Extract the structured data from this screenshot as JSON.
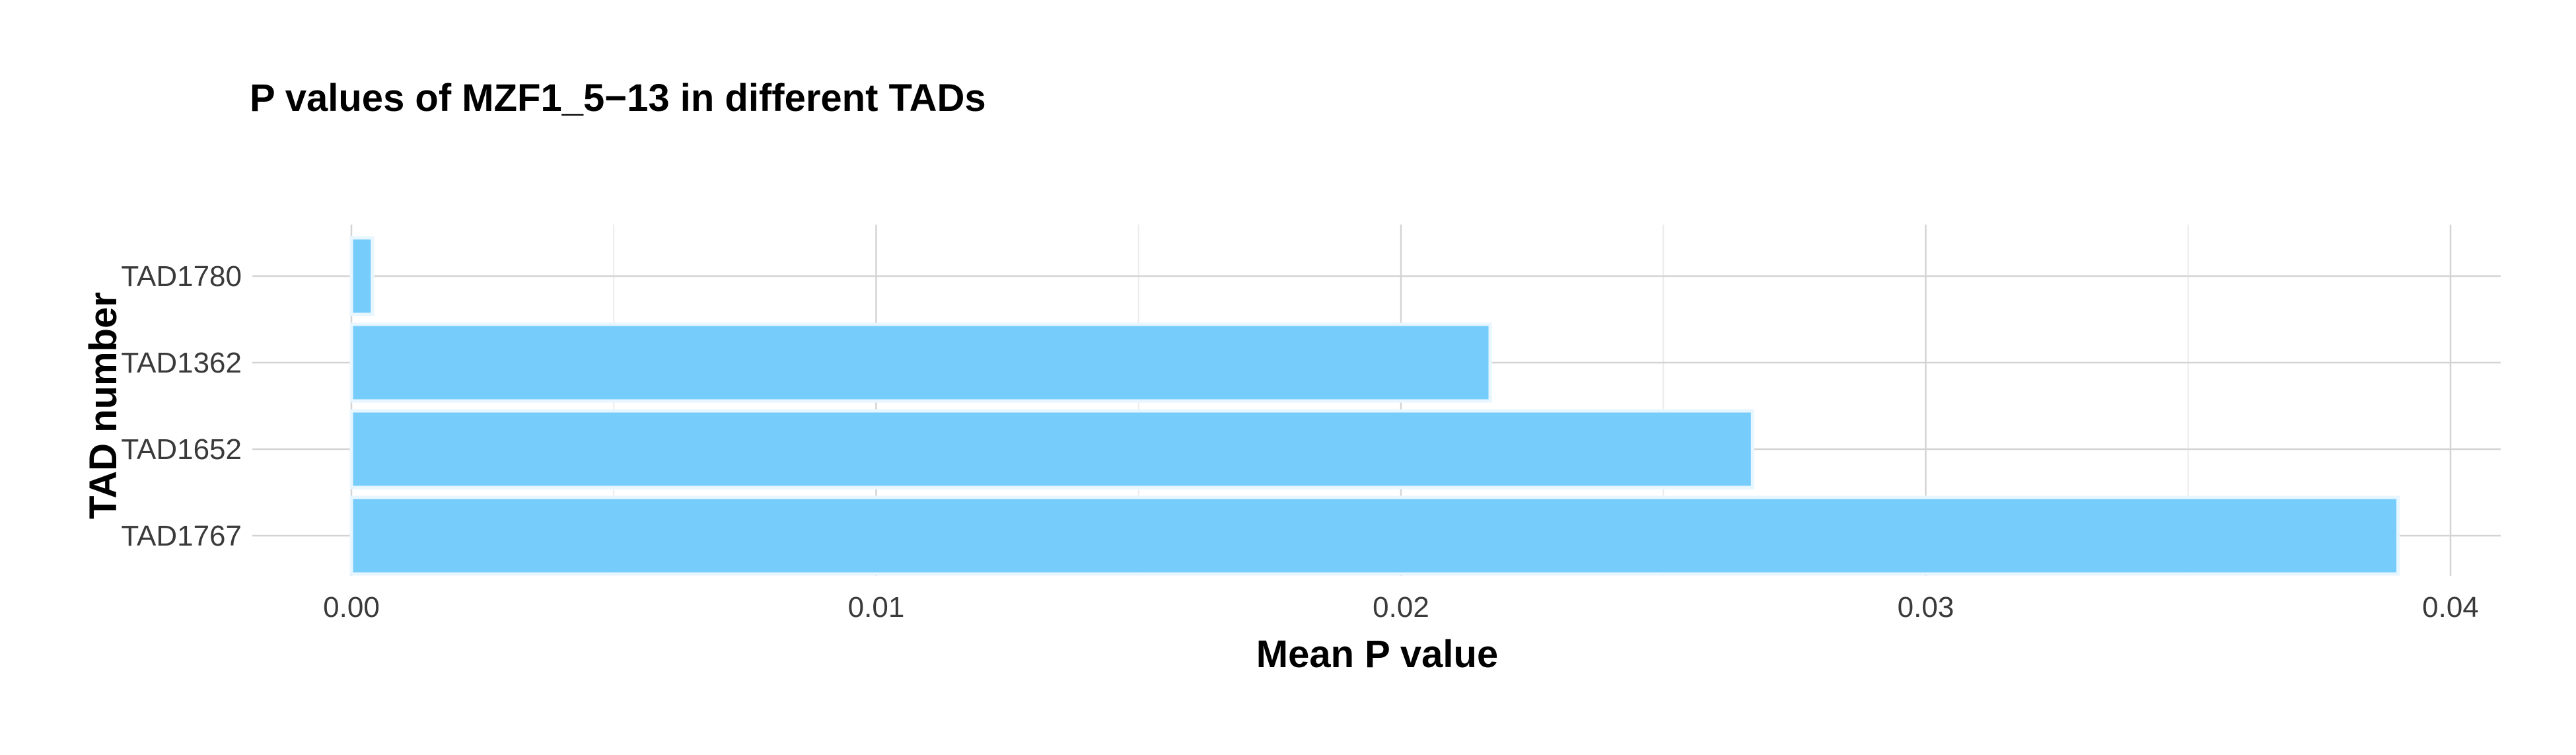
{
  "chart_data": {
    "type": "bar",
    "orientation": "horizontal",
    "title": "P values of MZF1_5−13 in different TADs",
    "xlabel": "Mean P value",
    "ylabel": "TAD number",
    "categories": [
      "TAD1780",
      "TAD1362",
      "TAD1652",
      "TAD1767"
    ],
    "values": [
      0.0004,
      0.0217,
      0.0267,
      0.039
    ],
    "xlim": [
      0,
      0.04
    ],
    "x_ticks": [
      0.0,
      0.01,
      0.02,
      0.03,
      0.04
    ],
    "x_tick_labels": [
      "0.00",
      "0.01",
      "0.02",
      "0.03",
      "0.04"
    ],
    "bar_color": "#76cdfc",
    "grid": true,
    "legend": "none"
  }
}
